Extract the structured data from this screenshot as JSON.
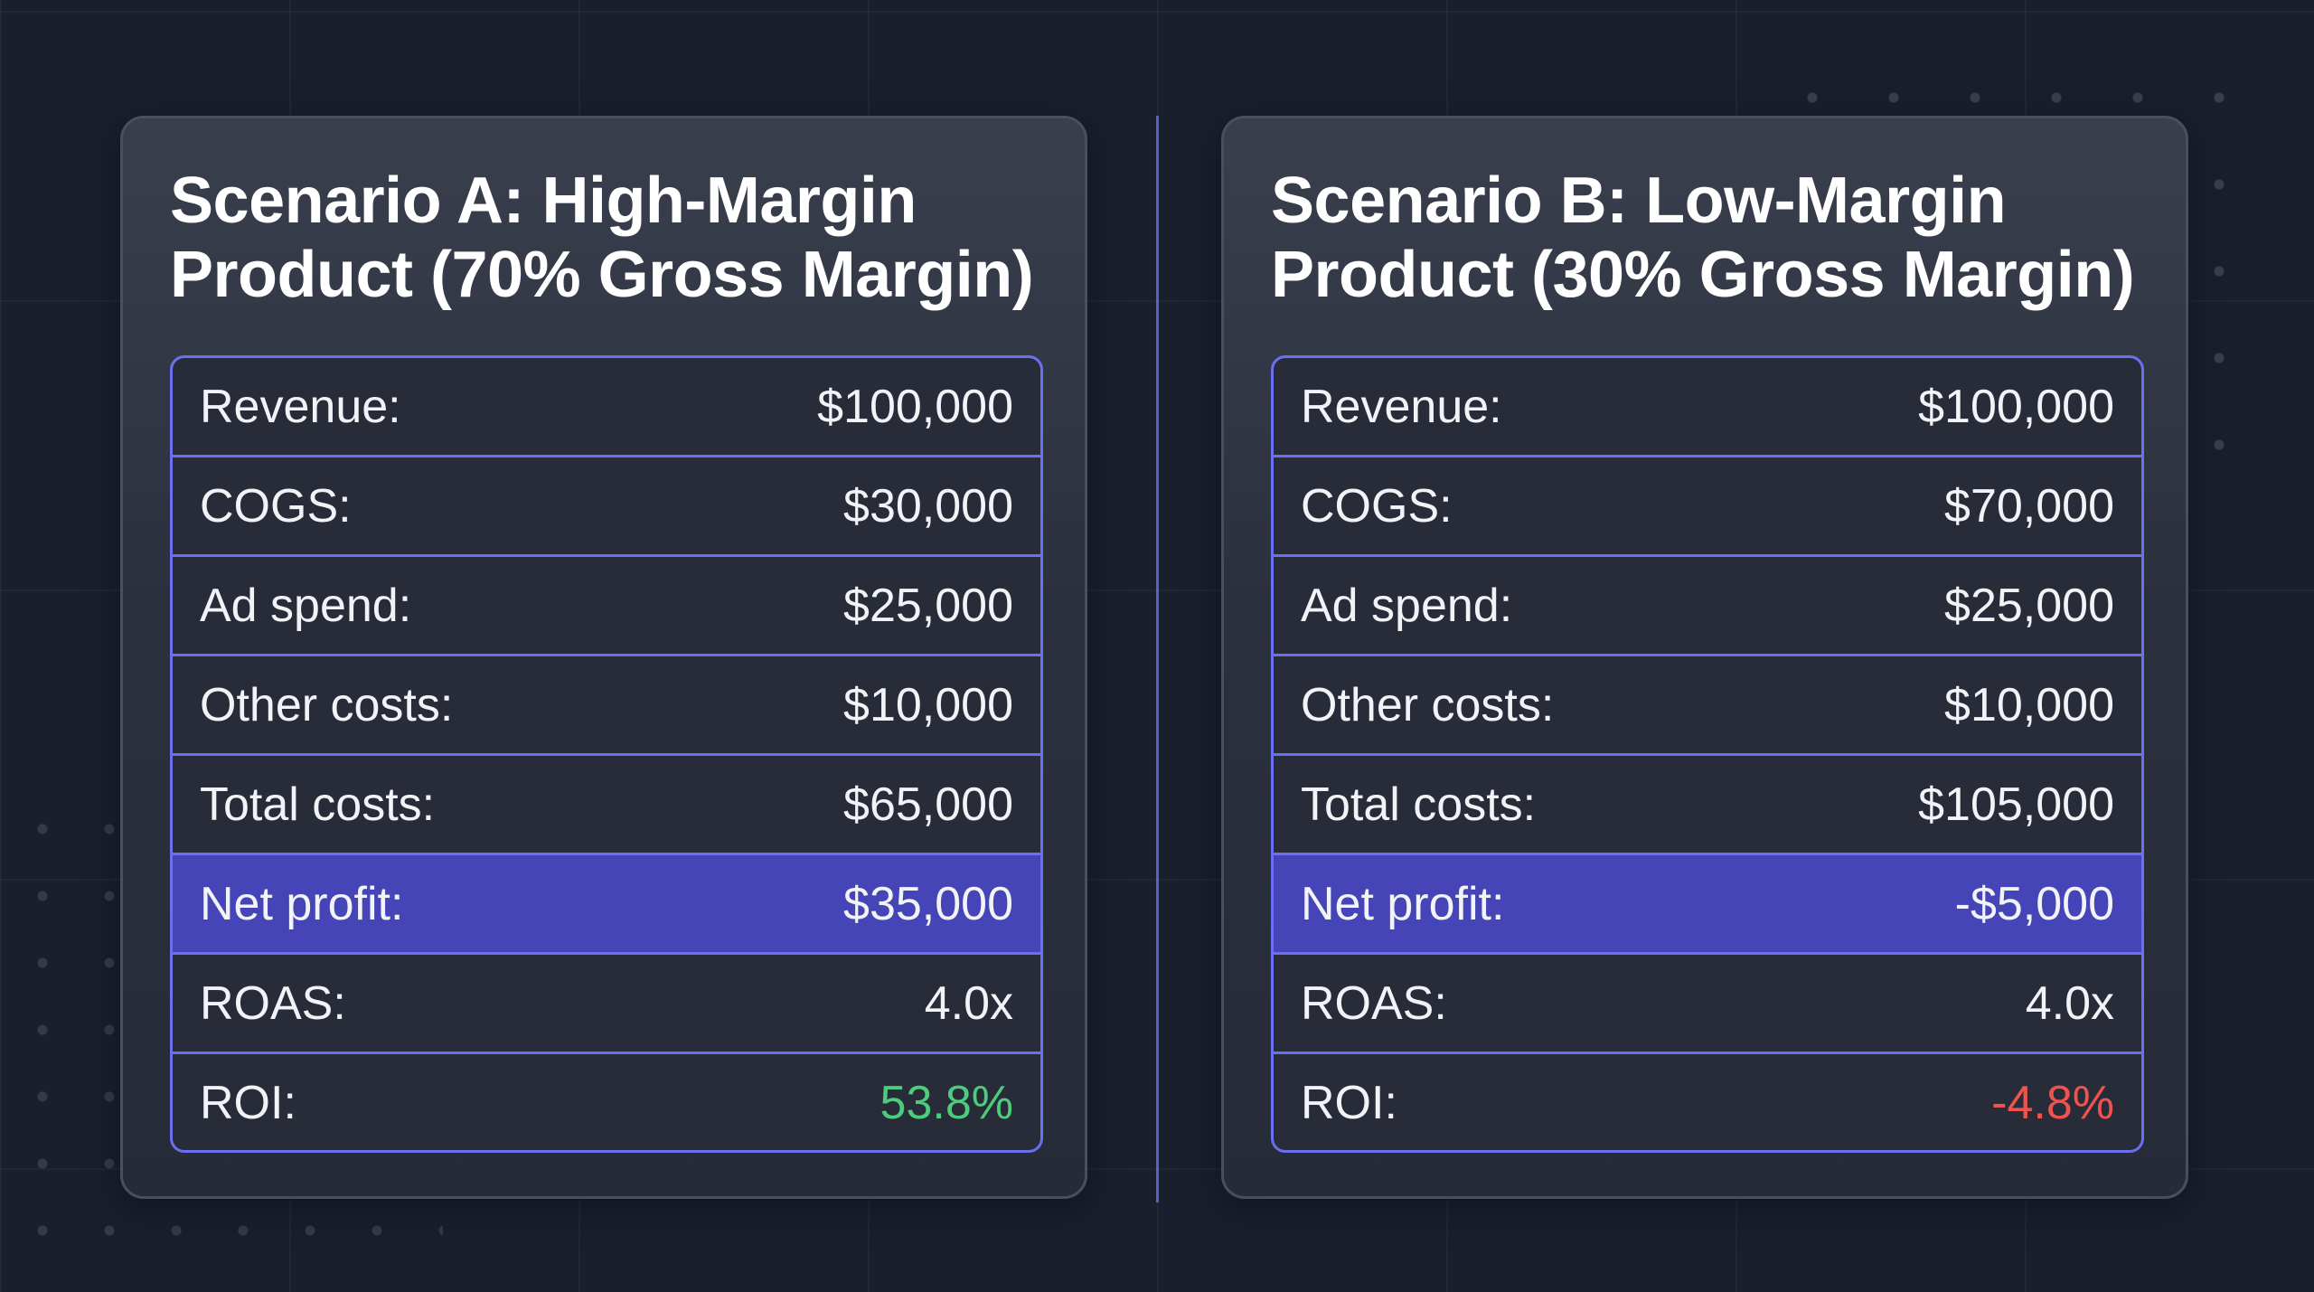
{
  "scenario_a": {
    "title": "Scenario A: High-Margin Product (70% Gross Margin)",
    "rows": [
      {
        "label": "Revenue:",
        "value": "$100,000"
      },
      {
        "label": "COGS:",
        "value": "$30,000"
      },
      {
        "label": "Ad spend:",
        "value": "$25,000"
      },
      {
        "label": "Other costs:",
        "value": "$10,000"
      },
      {
        "label": "Total costs:",
        "value": "$65,000"
      },
      {
        "label": "Net profit:",
        "value": "$35,000"
      },
      {
        "label": "ROAS:",
        "value": "4.0x"
      },
      {
        "label": "ROI:",
        "value": "53.8%"
      }
    ]
  },
  "scenario_b": {
    "title": "Scenario B: Low-Margin Product (30% Gross Margin)",
    "rows": [
      {
        "label": "Revenue:",
        "value": "$100,000"
      },
      {
        "label": "COGS:",
        "value": "$70,000"
      },
      {
        "label": "Ad spend:",
        "value": "$25,000"
      },
      {
        "label": "Other costs:",
        "value": "$10,000"
      },
      {
        "label": "Total costs:",
        "value": "$105,000"
      },
      {
        "label": "Net profit:",
        "value": "-$5,000"
      },
      {
        "label": "ROAS:",
        "value": "4.0x"
      },
      {
        "label": "ROI:",
        "value": "-4.8%"
      }
    ]
  },
  "colors": {
    "background": "#1a1f2e",
    "highlight_row": "#4545b8",
    "table_border": "#6b6ff0",
    "positive": "#4ccd7c",
    "negative": "#ef5350"
  }
}
